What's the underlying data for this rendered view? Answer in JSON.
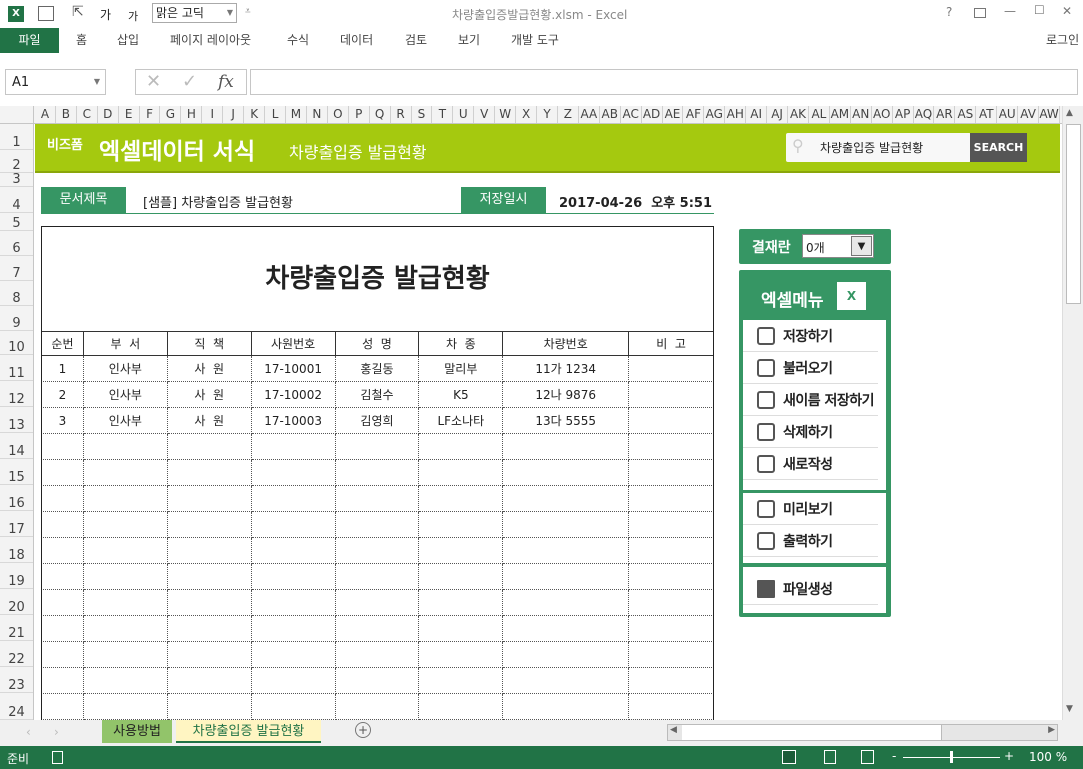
{
  "titlebar": {
    "title": "차량출입증발급현황.xlsm - Excel",
    "font_select": "맑은 고딕",
    "help": "?",
    "minimize": "—",
    "maximize": "☐",
    "close": "✕"
  },
  "ribbon": {
    "tabs": [
      "파일",
      "홈",
      "삽입",
      "페이지 레이아웃",
      "수식",
      "데이터",
      "검토",
      "보기",
      "개발 도구"
    ],
    "login": "로그인"
  },
  "formula_bar": {
    "name_box": "A1",
    "fx": "fx",
    "value": ""
  },
  "columns": [
    "A",
    "B",
    "C",
    "D",
    "E",
    "F",
    "G",
    "H",
    "I",
    "J",
    "K",
    "L",
    "M",
    "N",
    "O",
    "P",
    "Q",
    "R",
    "S",
    "T",
    "U",
    "V",
    "W",
    "X",
    "Y",
    "Z",
    "AA",
    "AB",
    "AC",
    "AD",
    "AE",
    "AF",
    "AG",
    "AH",
    "AI",
    "AJ",
    "AK",
    "AL",
    "AM",
    "AN",
    "AO",
    "AP",
    "AQ",
    "AR",
    "AS",
    "AT",
    "AU",
    "AV",
    "AW"
  ],
  "rows": [
    "1",
    "2",
    "3",
    "4",
    "5",
    "6",
    "7",
    "8",
    "9",
    "10",
    "11",
    "12",
    "13",
    "14",
    "15",
    "16",
    "17",
    "18",
    "19",
    "20",
    "21",
    "22",
    "23",
    "24"
  ],
  "banner": {
    "brand": "비즈폼",
    "title": "엑셀데이터 서식",
    "subtitle": "차량출입증 발급현황",
    "search_value": "차량출입증 발급현황",
    "search_button": "SEARCH"
  },
  "doc": {
    "title_label": "문서제목",
    "title_value": "[샘플] 차량출입증 발급현황",
    "date_label": "저장일시",
    "date_value": "2017-04-26  오후 5:51"
  },
  "report": {
    "heading": "차량출입증 발급현황",
    "headers": [
      "순번",
      "부  서",
      "직  책",
      "사원번호",
      "성  명",
      "차  종",
      "차량번호",
      "비  고"
    ],
    "rows": [
      [
        "1",
        "인사부",
        "사  원",
        "17-10001",
        "홍길동",
        "말리부",
        "11가 1234",
        ""
      ],
      [
        "2",
        "인사부",
        "사  원",
        "17-10002",
        "김철수",
        "K5",
        "12나 9876",
        ""
      ],
      [
        "3",
        "인사부",
        "사  원",
        "17-10003",
        "김영희",
        "LF소나타",
        "13다 5555",
        ""
      ]
    ]
  },
  "approval": {
    "label": "결재란",
    "value": "0개"
  },
  "menu": {
    "title": "엑셀메뉴",
    "group1": [
      "저장하기",
      "불러오기",
      "새이름 저장하기",
      "삭제하기",
      "새로작성"
    ],
    "group2": [
      "미리보기",
      "출력하기"
    ],
    "group3": [
      "파일생성"
    ]
  },
  "sheets": [
    "사용방법",
    "차량출입증 발급현황"
  ],
  "status": {
    "ready": "준비",
    "zoom": "100 %"
  },
  "colors": {
    "excel_green": "#217346",
    "banner": "#a5c90f",
    "accent": "#369664"
  }
}
